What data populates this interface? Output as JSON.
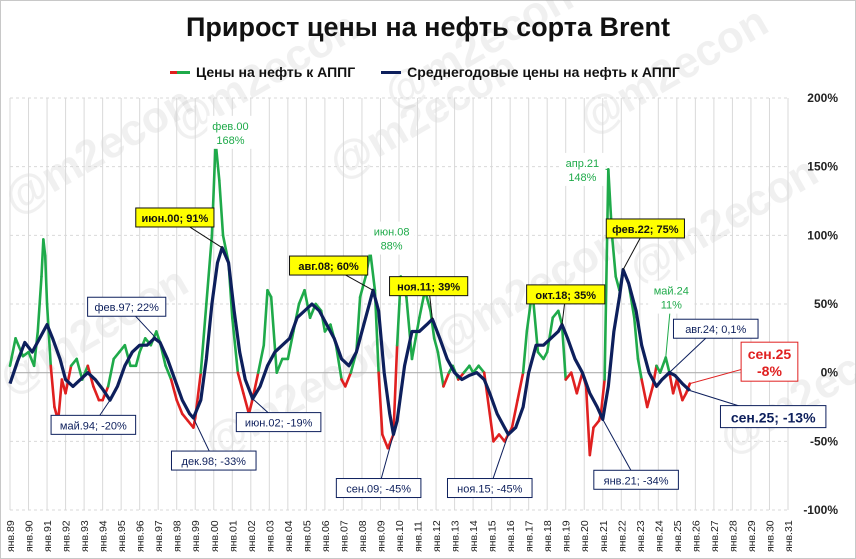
{
  "title": "Прирост цены на нефть сорта Brent",
  "watermark": "@m2econ",
  "legend": [
    {
      "label": "Цены на нефть к АППГ",
      "color": "#1faa4a",
      "color_alt": "#e02020"
    },
    {
      "label": "Среднегодовые цены на нефть к АППГ",
      "color": "#0d1f5c"
    }
  ],
  "chart_data": {
    "type": "line",
    "title": "Прирост цены на нефть сорта Brent",
    "y_axis": {
      "min": -100,
      "max": 200,
      "step": 50,
      "unit": "%",
      "position": "right",
      "tick_labels": [
        "200%",
        "150%",
        "100%",
        "50%",
        "0%",
        "-50%",
        "-100%"
      ]
    },
    "x_axis": {
      "range": [
        1989,
        2031
      ],
      "grid": true,
      "tick_labels": [
        "янв.89",
        "янв.90",
        "янв.91",
        "янв.92",
        "янв.93",
        "янв.94",
        "янв.95",
        "янв.96",
        "янв.97",
        "янв.98",
        "янв.99",
        "янв.00",
        "янв.01",
        "янв.02",
        "янв.03",
        "янв.04",
        "янв.05",
        "янв.06",
        "янв.07",
        "янв.08",
        "янв.09",
        "янв.10",
        "янв.11",
        "янв.12",
        "янв.13",
        "янв.14",
        "янв.15",
        "янв.16",
        "янв.17",
        "янв.18",
        "янв.19",
        "янв.20",
        "янв.21",
        "янв.22",
        "янв.23",
        "янв.24",
        "янв.25",
        "янв.26",
        "янв.27",
        "янв.28",
        "янв.29",
        "янв.30",
        "янв.31"
      ]
    },
    "series": [
      {
        "name": "Цены на нефть к АППГ",
        "color_positive": "#1faa4a",
        "color_negative": "#e02020",
        "points": [
          [
            1989.0,
            5
          ],
          [
            1989.3,
            25
          ],
          [
            1989.7,
            12
          ],
          [
            1990.0,
            15
          ],
          [
            1990.3,
            5
          ],
          [
            1990.5,
            30
          ],
          [
            1990.7,
            70
          ],
          [
            1990.8,
            97
          ],
          [
            1990.9,
            85
          ],
          [
            1991.0,
            50
          ],
          [
            1991.2,
            5
          ],
          [
            1991.4,
            -25
          ],
          [
            1991.6,
            -35
          ],
          [
            1991.8,
            -5
          ],
          [
            1992.0,
            -15
          ],
          [
            1992.3,
            5
          ],
          [
            1992.6,
            10
          ],
          [
            1992.9,
            -5
          ],
          [
            1993.2,
            5
          ],
          [
            1993.5,
            -10
          ],
          [
            1993.8,
            -20
          ],
          [
            1994.0,
            -20
          ],
          [
            1994.3,
            -10
          ],
          [
            1994.6,
            10
          ],
          [
            1994.9,
            15
          ],
          [
            1995.2,
            20
          ],
          [
            1995.5,
            5
          ],
          [
            1995.8,
            5
          ],
          [
            1996.0,
            15
          ],
          [
            1996.3,
            25
          ],
          [
            1996.6,
            20
          ],
          [
            1996.9,
            30
          ],
          [
            1997.1,
            22
          ],
          [
            1997.4,
            5
          ],
          [
            1997.7,
            -5
          ],
          [
            1998.0,
            -20
          ],
          [
            1998.3,
            -30
          ],
          [
            1998.6,
            -35
          ],
          [
            1998.9,
            -40
          ],
          [
            1999.0,
            -33
          ],
          [
            1999.3,
            0
          ],
          [
            1999.6,
            50
          ],
          [
            1999.9,
            100
          ],
          [
            2000.1,
            168
          ],
          [
            2000.3,
            140
          ],
          [
            2000.5,
            100
          ],
          [
            2000.8,
            80
          ],
          [
            2001.0,
            40
          ],
          [
            2001.3,
            0
          ],
          [
            2001.6,
            -15
          ],
          [
            2001.9,
            -30
          ],
          [
            2002.1,
            -19
          ],
          [
            2002.4,
            0
          ],
          [
            2002.7,
            20
          ],
          [
            2002.9,
            60
          ],
          [
            2003.1,
            55
          ],
          [
            2003.4,
            0
          ],
          [
            2003.7,
            10
          ],
          [
            2004.0,
            10
          ],
          [
            2004.3,
            30
          ],
          [
            2004.6,
            50
          ],
          [
            2004.9,
            60
          ],
          [
            2005.2,
            40
          ],
          [
            2005.5,
            50
          ],
          [
            2005.8,
            45
          ],
          [
            2006.0,
            30
          ],
          [
            2006.3,
            35
          ],
          [
            2006.6,
            20
          ],
          [
            2006.9,
            -5
          ],
          [
            2007.1,
            -10
          ],
          [
            2007.4,
            0
          ],
          [
            2007.7,
            15
          ],
          [
            2007.9,
            55
          ],
          [
            2008.2,
            70
          ],
          [
            2008.45,
            88
          ],
          [
            2008.7,
            60
          ],
          [
            2008.9,
            0
          ],
          [
            2009.1,
            -45
          ],
          [
            2009.4,
            -55
          ],
          [
            2009.7,
            -45
          ],
          [
            2009.9,
            20
          ],
          [
            2010.1,
            70
          ],
          [
            2010.4,
            55
          ],
          [
            2010.7,
            10
          ],
          [
            2010.9,
            25
          ],
          [
            2011.1,
            40
          ],
          [
            2011.4,
            60
          ],
          [
            2011.7,
            45
          ],
          [
            2011.9,
            25
          ],
          [
            2012.1,
            15
          ],
          [
            2012.4,
            -10
          ],
          [
            2012.7,
            0
          ],
          [
            2012.9,
            5
          ],
          [
            2013.2,
            -5
          ],
          [
            2013.5,
            0
          ],
          [
            2013.8,
            5
          ],
          [
            2014.0,
            0
          ],
          [
            2014.3,
            5
          ],
          [
            2014.6,
            0
          ],
          [
            2014.9,
            -30
          ],
          [
            2015.1,
            -50
          ],
          [
            2015.4,
            -45
          ],
          [
            2015.7,
            -50
          ],
          [
            2015.9,
            -45
          ],
          [
            2016.1,
            -40
          ],
          [
            2016.4,
            -20
          ],
          [
            2016.7,
            0
          ],
          [
            2016.9,
            30
          ],
          [
            2017.2,
            60
          ],
          [
            2017.5,
            15
          ],
          [
            2017.8,
            10
          ],
          [
            2018.0,
            15
          ],
          [
            2018.3,
            40
          ],
          [
            2018.6,
            45
          ],
          [
            2018.8,
            35
          ],
          [
            2019.0,
            -5
          ],
          [
            2019.3,
            0
          ],
          [
            2019.6,
            -15
          ],
          [
            2019.9,
            0
          ],
          [
            2020.1,
            -10
          ],
          [
            2020.3,
            -60
          ],
          [
            2020.5,
            -40
          ],
          [
            2020.8,
            -35
          ],
          [
            2020.9,
            -30
          ],
          [
            2021.1,
            -5
          ],
          [
            2021.3,
            148
          ],
          [
            2021.5,
            100
          ],
          [
            2021.7,
            70
          ],
          [
            2021.9,
            60
          ],
          [
            2022.1,
            75
          ],
          [
            2022.4,
            65
          ],
          [
            2022.7,
            40
          ],
          [
            2022.9,
            10
          ],
          [
            2023.1,
            -5
          ],
          [
            2023.4,
            -25
          ],
          [
            2023.7,
            -10
          ],
          [
            2023.9,
            5
          ],
          [
            2024.1,
            0
          ],
          [
            2024.4,
            11
          ],
          [
            2024.6,
            0
          ],
          [
            2024.8,
            -15
          ],
          [
            2025.0,
            -5
          ],
          [
            2025.3,
            -20
          ],
          [
            2025.5,
            -15
          ],
          [
            2025.7,
            -8
          ]
        ]
      },
      {
        "name": "Среднегодовые цены на нефть к АППГ",
        "color": "#0d1f5c",
        "points": [
          [
            1989.0,
            -8
          ],
          [
            1989.4,
            8
          ],
          [
            1989.8,
            22
          ],
          [
            1990.2,
            15
          ],
          [
            1990.6,
            25
          ],
          [
            1991.0,
            35
          ],
          [
            1991.3,
            25
          ],
          [
            1991.7,
            10
          ],
          [
            1992.0,
            -5
          ],
          [
            1992.4,
            -10
          ],
          [
            1992.8,
            -5
          ],
          [
            1993.2,
            0
          ],
          [
            1993.6,
            -5
          ],
          [
            1994.0,
            -12
          ],
          [
            1994.4,
            -20
          ],
          [
            1994.8,
            -10
          ],
          [
            1995.2,
            5
          ],
          [
            1995.6,
            15
          ],
          [
            1996.0,
            20
          ],
          [
            1996.4,
            20
          ],
          [
            1996.8,
            25
          ],
          [
            1997.1,
            22
          ],
          [
            1997.5,
            10
          ],
          [
            1997.9,
            -5
          ],
          [
            1998.3,
            -20
          ],
          [
            1998.7,
            -30
          ],
          [
            1998.9,
            -33
          ],
          [
            1999.3,
            -20
          ],
          [
            1999.6,
            10
          ],
          [
            1999.9,
            50
          ],
          [
            2000.2,
            80
          ],
          [
            2000.45,
            91
          ],
          [
            2000.8,
            80
          ],
          [
            2001.1,
            45
          ],
          [
            2001.4,
            15
          ],
          [
            2001.7,
            -5
          ],
          [
            2002.1,
            -19
          ],
          [
            2002.5,
            -10
          ],
          [
            2002.9,
            5
          ],
          [
            2003.3,
            15
          ],
          [
            2003.7,
            20
          ],
          [
            2004.1,
            25
          ],
          [
            2004.5,
            40
          ],
          [
            2004.9,
            45
          ],
          [
            2005.3,
            50
          ],
          [
            2005.7,
            45
          ],
          [
            2006.1,
            35
          ],
          [
            2006.5,
            25
          ],
          [
            2006.9,
            10
          ],
          [
            2007.3,
            5
          ],
          [
            2007.7,
            15
          ],
          [
            2008.1,
            35
          ],
          [
            2008.6,
            60
          ],
          [
            2008.9,
            45
          ],
          [
            2009.2,
            0
          ],
          [
            2009.5,
            -30
          ],
          [
            2009.7,
            -45
          ],
          [
            2009.9,
            -35
          ],
          [
            2010.3,
            5
          ],
          [
            2010.7,
            30
          ],
          [
            2011.1,
            30
          ],
          [
            2011.5,
            35
          ],
          [
            2011.8,
            39
          ],
          [
            2012.2,
            25
          ],
          [
            2012.6,
            10
          ],
          [
            2013.0,
            0
          ],
          [
            2013.4,
            -5
          ],
          [
            2013.8,
            -2
          ],
          [
            2014.2,
            0
          ],
          [
            2014.6,
            -5
          ],
          [
            2014.9,
            -15
          ],
          [
            2015.3,
            -30
          ],
          [
            2015.7,
            -40
          ],
          [
            2015.9,
            -45
          ],
          [
            2016.3,
            -40
          ],
          [
            2016.7,
            -25
          ],
          [
            2017.0,
            0
          ],
          [
            2017.4,
            20
          ],
          [
            2017.8,
            20
          ],
          [
            2018.2,
            25
          ],
          [
            2018.6,
            30
          ],
          [
            2018.8,
            35
          ],
          [
            2019.1,
            25
          ],
          [
            2019.5,
            10
          ],
          [
            2019.9,
            0
          ],
          [
            2020.3,
            -15
          ],
          [
            2020.7,
            -25
          ],
          [
            2021.0,
            -34
          ],
          [
            2021.3,
            -10
          ],
          [
            2021.6,
            30
          ],
          [
            2021.9,
            55
          ],
          [
            2022.1,
            75
          ],
          [
            2022.4,
            65
          ],
          [
            2022.8,
            45
          ],
          [
            2023.1,
            20
          ],
          [
            2023.5,
            0
          ],
          [
            2023.9,
            -10
          ],
          [
            2024.2,
            -5
          ],
          [
            2024.6,
            0.1
          ],
          [
            2024.9,
            -2
          ],
          [
            2025.3,
            -8
          ],
          [
            2025.7,
            -13
          ]
        ]
      }
    ],
    "callouts": [
      {
        "text": "фев.00\n168%",
        "x": 2000.1,
        "y": 168,
        "lx": 2000.9,
        "ly": 175,
        "style": "green"
      },
      {
        "text": "апр.21\n148%",
        "x": 2021.3,
        "y": 148,
        "lx": 2019.9,
        "ly": 148,
        "style": "green"
      },
      {
        "text": "июн.08\n88%",
        "x": 2008.45,
        "y": 88,
        "lx": 2009.6,
        "ly": 98,
        "style": "green"
      },
      {
        "text": "май.24\n11%",
        "x": 2024.4,
        "y": 11,
        "lx": 2024.7,
        "ly": 55,
        "style": "green"
      },
      {
        "text": "июн.00; 91%",
        "x": 2000.45,
        "y": 91,
        "lx": 1997.9,
        "ly": 113,
        "style": "yellow"
      },
      {
        "text": "авг.08; 60%",
        "x": 2008.6,
        "y": 60,
        "lx": 2006.2,
        "ly": 78,
        "style": "yellow"
      },
      {
        "text": "ноя.11; 39%",
        "x": 2011.8,
        "y": 39,
        "lx": 2011.6,
        "ly": 63,
        "style": "yellow"
      },
      {
        "text": "окт.18; 35%",
        "x": 2018.8,
        "y": 35,
        "lx": 2019.0,
        "ly": 57,
        "style": "yellow"
      },
      {
        "text": "фев.22; 75%",
        "x": 2022.1,
        "y": 75,
        "lx": 2023.3,
        "ly": 105,
        "style": "yellow"
      },
      {
        "text": "фев.97; 22%",
        "x": 1997.1,
        "y": 22,
        "lx": 1995.3,
        "ly": 48,
        "style": "blue"
      },
      {
        "text": "май.94; -20%",
        "x": 1994.4,
        "y": -20,
        "lx": 1993.5,
        "ly": -38,
        "style": "blue"
      },
      {
        "text": "дек.98; -33%",
        "x": 1998.9,
        "y": -33,
        "lx": 2000.0,
        "ly": -64,
        "style": "blue"
      },
      {
        "text": "июн.02; -19%",
        "x": 2002.1,
        "y": -19,
        "lx": 2003.5,
        "ly": -36,
        "style": "blue"
      },
      {
        "text": "сен.09; -45%",
        "x": 2009.7,
        "y": -45,
        "lx": 2008.9,
        "ly": -84,
        "style": "blue"
      },
      {
        "text": "ноя.15; -45%",
        "x": 2015.9,
        "y": -45,
        "lx": 2014.9,
        "ly": -84,
        "style": "blue"
      },
      {
        "text": "янв.21; -34%",
        "x": 2021.0,
        "y": -34,
        "lx": 2022.8,
        "ly": -78,
        "style": "blue"
      },
      {
        "text": "авг.24; 0,1%",
        "x": 2024.6,
        "y": 0.1,
        "lx": 2027.1,
        "ly": 32,
        "style": "blue"
      },
      {
        "text": "сен.25\n-8%",
        "x": 2025.7,
        "y": -8,
        "lx": 2030.0,
        "ly": 8,
        "style": "red-big"
      },
      {
        "text": "сен.25; -13%",
        "x": 2025.7,
        "y": -13,
        "lx": 2030.2,
        "ly": -32,
        "style": "blue-big"
      }
    ]
  }
}
